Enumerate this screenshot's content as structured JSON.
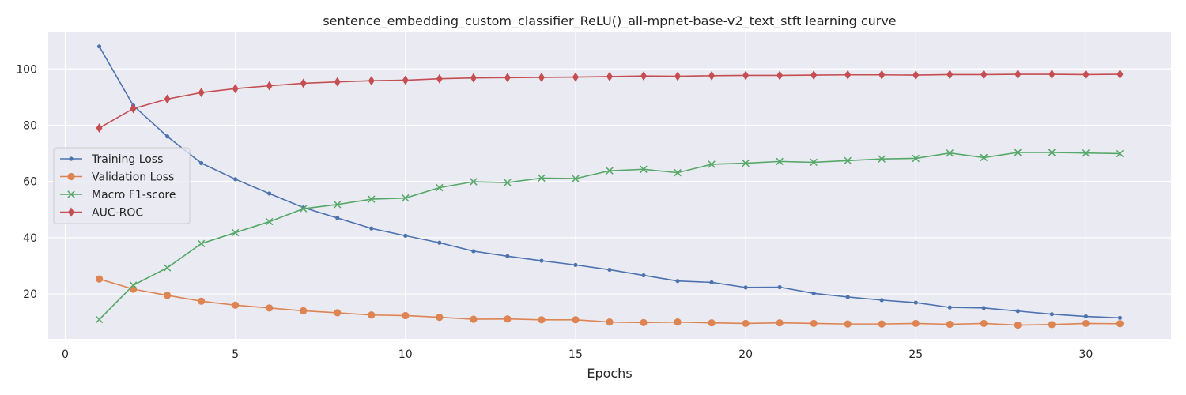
{
  "chart_data": {
    "type": "line",
    "title": "sentence_embedding_custom_classifier_ReLU()_all-mpnet-base-v2_text_stft learning curve",
    "xlabel": "Epochs",
    "ylabel": "",
    "xlim": [
      -0.5,
      32.5
    ],
    "ylim": [
      4,
      113
    ],
    "x_ticks": [
      0,
      5,
      10,
      15,
      20,
      25,
      30
    ],
    "y_ticks": [
      20,
      40,
      60,
      80,
      100
    ],
    "grid": true,
    "legend_position": "center-left",
    "x": [
      1,
      2,
      3,
      4,
      5,
      6,
      7,
      8,
      9,
      10,
      11,
      12,
      13,
      14,
      15,
      16,
      17,
      18,
      19,
      20,
      21,
      22,
      23,
      24,
      25,
      26,
      27,
      28,
      29,
      30,
      31
    ],
    "series": [
      {
        "name": "Training Loss",
        "color": "#4c72b0",
        "marker": "point",
        "values": [
          108,
          87,
          76,
          66.5,
          60.8,
          55.7,
          50.7,
          47,
          43.3,
          40.7,
          38.2,
          35.2,
          33.4,
          31.8,
          30.3,
          28.6,
          26.6,
          24.6,
          24.1,
          22.3,
          22.4,
          20.2,
          18.9,
          17.8,
          16.9,
          15.2,
          15,
          13.9,
          12.8,
          12,
          11.5
        ]
      },
      {
        "name": "Validation Loss",
        "color": "#dd8452",
        "marker": "circle",
        "values": [
          25.3,
          21.7,
          19.5,
          17.4,
          16,
          15,
          14,
          13.3,
          12.5,
          12.3,
          11.7,
          11,
          11.1,
          10.8,
          10.8,
          10,
          9.8,
          10,
          9.7,
          9.5,
          9.7,
          9.5,
          9.3,
          9.3,
          9.5,
          9.2,
          9.5,
          8.9,
          9.1,
          9.5,
          9.4
        ]
      },
      {
        "name": "Macro F1-score",
        "color": "#55a868",
        "marker": "x",
        "values": [
          10.9,
          23.1,
          29.3,
          37.9,
          41.8,
          45.7,
          50.3,
          51.8,
          53.7,
          54.1,
          57.8,
          59.9,
          59.6,
          61.2,
          61,
          63.8,
          64.3,
          63.1,
          66.1,
          66.5,
          67.1,
          66.8,
          67.4,
          68,
          68.2,
          70.1,
          68.5,
          70.3,
          70.3,
          70.1,
          69.9
        ]
      },
      {
        "name": "AUC-ROC",
        "color": "#c44e52",
        "marker": "diamond",
        "values": [
          79,
          85.9,
          89.3,
          91.6,
          93,
          94,
          94.9,
          95.4,
          95.8,
          96,
          96.5,
          96.8,
          96.9,
          97,
          97.1,
          97.3,
          97.5,
          97.4,
          97.6,
          97.7,
          97.7,
          97.8,
          97.9,
          97.9,
          97.8,
          98,
          98,
          98.1,
          98.1,
          98,
          98.1
        ]
      }
    ]
  }
}
